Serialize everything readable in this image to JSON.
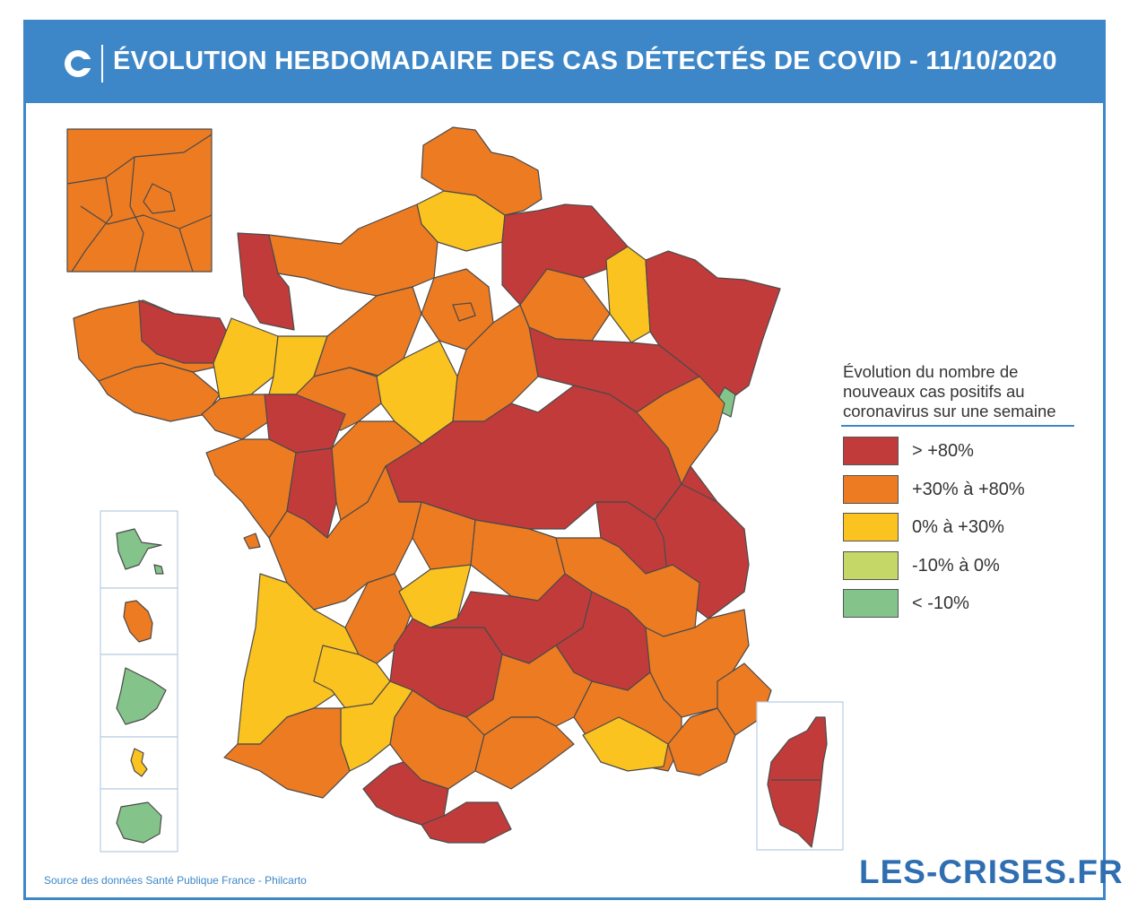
{
  "header": {
    "title": "ÉVOLUTION HEBDOMADAIRE DES CAS DÉTECTÉS DE COVID - 11/10/2020",
    "logo_icon": "les-crises-logo-icon"
  },
  "colors": {
    "frame": "#3d87c8",
    "gt80": "#c23b3b",
    "p30_80": "#ed7b22",
    "p0_30": "#fbc31f",
    "m10_0": "#c5d867",
    "lt_m10": "#84c38a",
    "border": "#4a4a4a"
  },
  "legend": {
    "title": "Évolution du nombre de nouveaux cas positifs au coronavirus sur une semaine",
    "items": [
      {
        "label": "> +80%",
        "color": "#c23b3b"
      },
      {
        "label": "+30% à +80%",
        "color": "#ed7b22"
      },
      {
        "label": "0% à +30%",
        "color": "#fbc31f"
      },
      {
        "label": "-10% à 0%",
        "color": "#c5d867"
      },
      {
        "label": "< -10%",
        "color": "#84c38a"
      }
    ]
  },
  "insets": {
    "paris": "paris-inset",
    "overseas": [
      "guadeloupe",
      "martinique",
      "guyane",
      "mayotte",
      "la-reunion"
    ],
    "corsica": "corse-inset"
  },
  "footer": {
    "source": "Source des données Santé Publique France - Philcarto",
    "brand": "LES-CRISES.FR"
  }
}
